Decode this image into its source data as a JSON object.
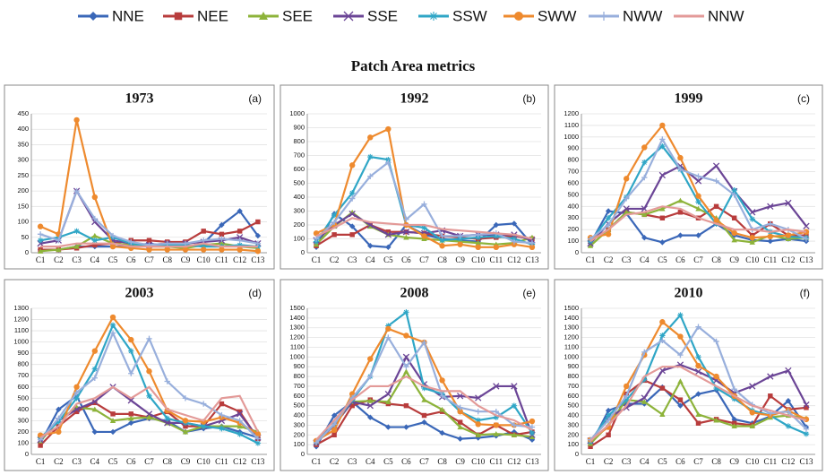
{
  "title": "Patch Area metrics",
  "legend": [
    {
      "name": "NNE",
      "color": "#3a67b8",
      "marker": "diamond"
    },
    {
      "name": "NEE",
      "color": "#b83c3c",
      "marker": "square"
    },
    {
      "name": "SEE",
      "color": "#8db33a",
      "marker": "triangle"
    },
    {
      "name": "SSE",
      "color": "#6b4596",
      "marker": "x"
    },
    {
      "name": "SSW",
      "color": "#2fa6c6",
      "marker": "star"
    },
    {
      "name": "SWW",
      "color": "#ee8a2e",
      "marker": "circle"
    },
    {
      "name": "NWW",
      "color": "#98afdc",
      "marker": "plus"
    },
    {
      "name": "NNW",
      "color": "#e39a98",
      "marker": "none"
    }
  ],
  "chart_data": [
    {
      "type": "line",
      "title": "1973",
      "annotation": "(a)",
      "grid": true,
      "categories": [
        "C1",
        "C2",
        "C3",
        "C4",
        "C5",
        "C6",
        "C7",
        "C8",
        "C9",
        "C10",
        "C11",
        "C12",
        "C13"
      ],
      "ylim": [
        0,
        450
      ],
      "yticks": [
        0,
        50,
        100,
        150,
        200,
        250,
        300,
        350,
        400,
        450
      ],
      "series": [
        {
          "values": [
            10,
            10,
            20,
            20,
            20,
            20,
            30,
            20,
            20,
            30,
            90,
            135,
            55
          ]
        },
        {
          "values": [
            10,
            10,
            15,
            25,
            30,
            40,
            40,
            35,
            35,
            70,
            60,
            70,
            100
          ]
        },
        {
          "values": [
            5,
            10,
            20,
            55,
            30,
            25,
            20,
            20,
            15,
            25,
            30,
            20,
            15
          ]
        },
        {
          "values": [
            30,
            40,
            200,
            100,
            40,
            30,
            25,
            30,
            30,
            35,
            40,
            50,
            30
          ]
        },
        {
          "values": [
            40,
            50,
            70,
            40,
            50,
            30,
            20,
            25,
            25,
            20,
            20,
            25,
            20
          ]
        },
        {
          "values": [
            85,
            60,
            430,
            180,
            20,
            15,
            10,
            10,
            10,
            10,
            10,
            10,
            5
          ]
        },
        {
          "values": [
            60,
            40,
            200,
            110,
            55,
            35,
            25,
            30,
            30,
            40,
            45,
            40,
            30
          ]
        },
        {
          "values": [
            20,
            20,
            30,
            30,
            30,
            20,
            20,
            20,
            20,
            30,
            20,
            20,
            20
          ]
        }
      ]
    },
    {
      "type": "line",
      "title": "1992",
      "annotation": "(b)",
      "grid": true,
      "categories": [
        "C1",
        "C2",
        "C3",
        "C4",
        "C5",
        "C6",
        "C7",
        "C8",
        "C9",
        "C10",
        "C11",
        "C12",
        "C13"
      ],
      "ylim": [
        0,
        1000
      ],
      "yticks": [
        0,
        100,
        200,
        300,
        400,
        500,
        600,
        700,
        800,
        900,
        1000
      ],
      "series": [
        {
          "values": [
            40,
            280,
            190,
            50,
            40,
            200,
            130,
            100,
            90,
            80,
            200,
            210,
            60
          ]
        },
        {
          "values": [
            50,
            130,
            130,
            200,
            150,
            150,
            140,
            120,
            110,
            100,
            110,
            120,
            100
          ]
        },
        {
          "values": [
            60,
            190,
            290,
            190,
            130,
            110,
            100,
            90,
            80,
            70,
            60,
            70,
            110
          ]
        },
        {
          "values": [
            90,
            200,
            280,
            200,
            130,
            150,
            140,
            160,
            120,
            130,
            130,
            130,
            90
          ]
        },
        {
          "values": [
            80,
            270,
            430,
            690,
            670,
            200,
            180,
            90,
            100,
            110,
            120,
            100,
            60
          ]
        },
        {
          "values": [
            140,
            200,
            630,
            830,
            890,
            200,
            120,
            50,
            60,
            40,
            40,
            60,
            40
          ]
        },
        {
          "values": [
            100,
            220,
            390,
            550,
            650,
            240,
            350,
            120,
            120,
            130,
            140,
            80,
            70
          ]
        },
        {
          "values": [
            120,
            180,
            250,
            220,
            210,
            200,
            200,
            170,
            160,
            150,
            140,
            130,
            100
          ]
        }
      ]
    },
    {
      "type": "line",
      "title": "1999",
      "annotation": "(c)",
      "grid": true,
      "categories": [
        "C1",
        "C2",
        "C3",
        "C4",
        "C5",
        "C6",
        "C7",
        "C8",
        "C9",
        "C10",
        "C11",
        "C12",
        "C13"
      ],
      "ylim": [
        0,
        1200
      ],
      "yticks": [
        0,
        100,
        200,
        300,
        400,
        500,
        600,
        700,
        800,
        900,
        1000,
        1100,
        1200
      ],
      "series": [
        {
          "values": [
            80,
            360,
            340,
            130,
            90,
            150,
            150,
            250,
            150,
            110,
            100,
            120,
            100
          ]
        },
        {
          "values": [
            100,
            200,
            350,
            330,
            300,
            350,
            300,
            400,
            300,
            150,
            250,
            150,
            150
          ]
        },
        {
          "values": [
            60,
            200,
            350,
            330,
            380,
            450,
            380,
            300,
            110,
            90,
            150,
            120,
            130
          ]
        },
        {
          "values": [
            80,
            250,
            380,
            380,
            670,
            750,
            620,
            750,
            530,
            350,
            400,
            430,
            230
          ]
        },
        {
          "values": [
            100,
            300,
            480,
            780,
            920,
            720,
            440,
            250,
            540,
            290,
            180,
            140,
            130
          ]
        },
        {
          "values": [
            130,
            160,
            640,
            910,
            1100,
            820,
            490,
            280,
            170,
            130,
            140,
            150,
            180
          ]
        },
        {
          "values": [
            120,
            240,
            470,
            650,
            980,
            720,
            660,
            620,
            500,
            200,
            250,
            200,
            120
          ]
        },
        {
          "values": [
            100,
            200,
            330,
            350,
            400,
            380,
            300,
            250,
            200,
            200,
            180,
            200,
            180
          ]
        }
      ]
    },
    {
      "type": "line",
      "title": "2003",
      "annotation": "(d)",
      "grid": true,
      "categories": [
        "C1",
        "C2",
        "C3",
        "C4",
        "C5",
        "C6",
        "C7",
        "C8",
        "C9",
        "C10",
        "C11",
        "C12",
        "C13"
      ],
      "ylim": [
        0,
        1300
      ],
      "yticks": [
        0,
        100,
        200,
        300,
        400,
        500,
        600,
        700,
        800,
        900,
        1000,
        1100,
        1200,
        1300
      ],
      "series": [
        {
          "values": [
            100,
            400,
            520,
            200,
            200,
            280,
            320,
            300,
            200,
            230,
            250,
            200,
            150
          ]
        },
        {
          "values": [
            80,
            250,
            380,
            460,
            360,
            360,
            330,
            380,
            250,
            250,
            450,
            380,
            140
          ]
        },
        {
          "values": [
            120,
            300,
            420,
            400,
            300,
            320,
            330,
            280,
            200,
            250,
            250,
            250,
            200
          ]
        },
        {
          "values": [
            130,
            300,
            400,
            470,
            600,
            480,
            360,
            280,
            280,
            250,
            300,
            360,
            150
          ]
        },
        {
          "values": [
            150,
            290,
            500,
            760,
            1150,
            920,
            520,
            320,
            280,
            250,
            230,
            180,
            100
          ]
        },
        {
          "values": [
            170,
            200,
            600,
            920,
            1220,
            1020,
            740,
            390,
            300,
            290,
            330,
            280,
            180
          ]
        },
        {
          "values": [
            130,
            320,
            550,
            680,
            1080,
            720,
            1030,
            650,
            500,
            450,
            350,
            300,
            140
          ]
        },
        {
          "values": [
            150,
            250,
            450,
            500,
            600,
            500,
            600,
            400,
            350,
            300,
            500,
            520,
            200
          ]
        }
      ]
    },
    {
      "type": "line",
      "title": "2008",
      "annotation": "(e)",
      "grid": true,
      "categories": [
        "C1",
        "C2",
        "C3",
        "C4",
        "C5",
        "C6",
        "C7",
        "C8",
        "C9",
        "C10",
        "C11",
        "C12",
        "C13"
      ],
      "ylim": [
        0,
        1500
      ],
      "yticks": [
        0,
        100,
        200,
        300,
        400,
        500,
        600,
        700,
        800,
        900,
        1000,
        1100,
        1200,
        1300,
        1400,
        1500
      ],
      "series": [
        {
          "values": [
            80,
            400,
            540,
            380,
            280,
            280,
            330,
            220,
            160,
            170,
            190,
            230,
            150
          ]
        },
        {
          "values": [
            100,
            200,
            500,
            560,
            520,
            500,
            400,
            440,
            330,
            200,
            300,
            200,
            230
          ]
        },
        {
          "values": [
            120,
            300,
            540,
            550,
            540,
            850,
            560,
            460,
            280,
            200,
            210,
            200,
            180
          ]
        },
        {
          "values": [
            120,
            300,
            540,
            500,
            620,
            1000,
            720,
            590,
            600,
            580,
            700,
            700,
            200
          ]
        },
        {
          "values": [
            130,
            310,
            560,
            800,
            1320,
            1460,
            680,
            620,
            440,
            350,
            380,
            500,
            220
          ]
        },
        {
          "values": [
            140,
            250,
            620,
            980,
            1290,
            1220,
            1150,
            760,
            440,
            310,
            300,
            300,
            340
          ]
        },
        {
          "values": [
            120,
            310,
            580,
            800,
            1200,
            900,
            1150,
            600,
            480,
            440,
            440,
            300,
            280
          ]
        },
        {
          "values": [
            150,
            350,
            560,
            700,
            700,
            800,
            700,
            650,
            650,
            500,
            400,
            350,
            250
          ]
        }
      ]
    },
    {
      "type": "line",
      "title": "2010",
      "annotation": "(f)",
      "grid": true,
      "categories": [
        "C1",
        "C2",
        "C3",
        "C4",
        "C5",
        "C6",
        "C7",
        "C8",
        "C9",
        "C10",
        "C11",
        "C12",
        "C13"
      ],
      "ylim": [
        0,
        1500
      ],
      "yticks": [
        0,
        100,
        200,
        300,
        400,
        500,
        600,
        700,
        800,
        900,
        1000,
        1100,
        1200,
        1300,
        1400,
        1500
      ],
      "series": [
        {
          "values": [
            90,
            450,
            520,
            520,
            690,
            500,
            620,
            660,
            360,
            320,
            390,
            550,
            280
          ]
        },
        {
          "values": [
            80,
            200,
            620,
            760,
            680,
            560,
            320,
            360,
            320,
            300,
            600,
            460,
            480
          ]
        },
        {
          "values": [
            110,
            300,
            560,
            540,
            410,
            750,
            410,
            350,
            290,
            290,
            380,
            400,
            370
          ]
        },
        {
          "values": [
            140,
            380,
            480,
            580,
            860,
            920,
            850,
            760,
            630,
            700,
            800,
            860,
            510
          ]
        },
        {
          "values": [
            130,
            400,
            560,
            770,
            1220,
            1430,
            1000,
            680,
            570,
            450,
            400,
            290,
            210
          ]
        },
        {
          "values": [
            150,
            280,
            700,
            1020,
            1360,
            1210,
            910,
            800,
            600,
            430,
            400,
            450,
            360
          ]
        },
        {
          "values": [
            150,
            350,
            600,
            1050,
            1170,
            1020,
            1310,
            1160,
            670,
            510,
            420,
            440,
            260
          ]
        },
        {
          "values": [
            140,
            300,
            500,
            800,
            900,
            900,
            800,
            700,
            600,
            500,
            450,
            400,
            350
          ]
        }
      ]
    }
  ]
}
